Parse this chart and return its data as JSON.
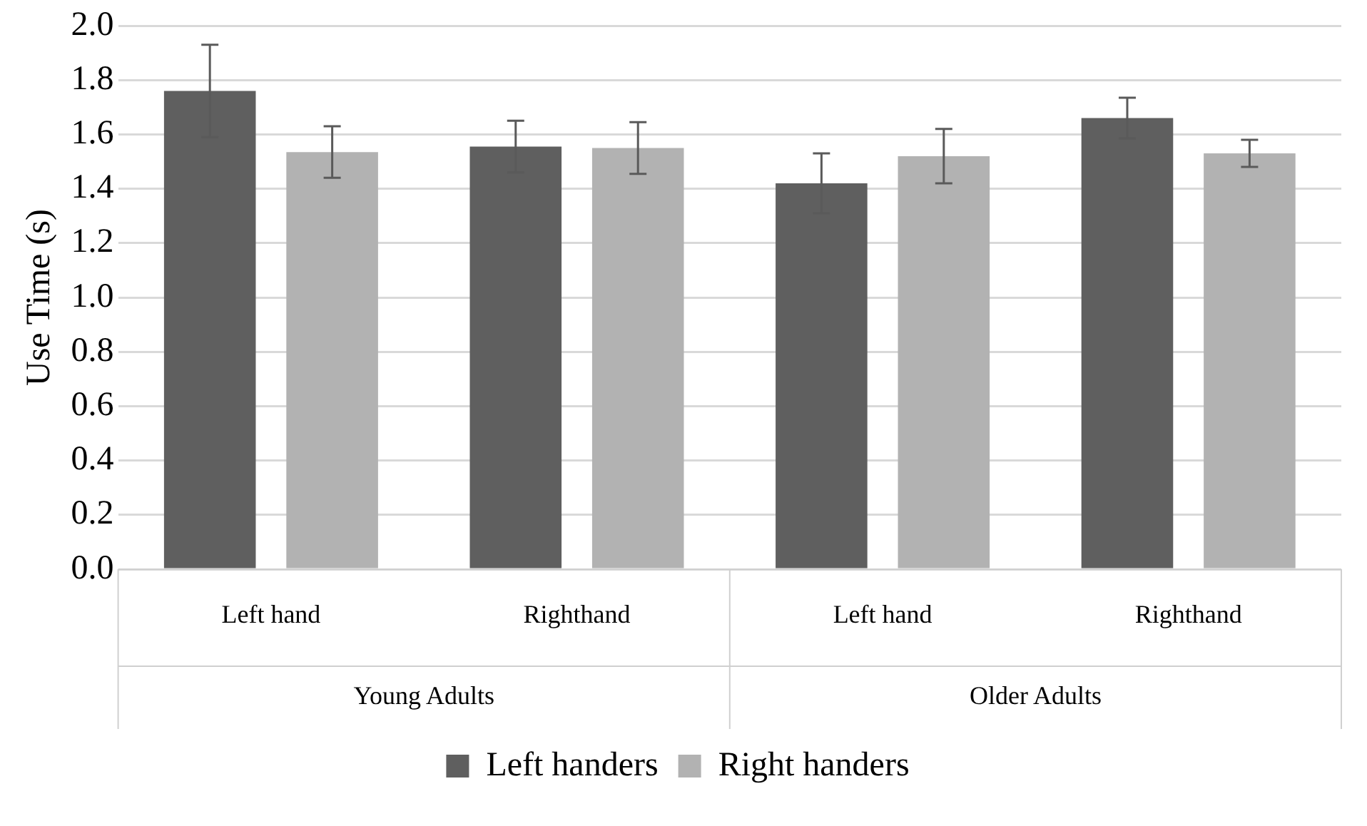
{
  "chart_data": {
    "type": "bar",
    "ylabel": "Use Time (s)",
    "categories": [
      "Left hand",
      "Righthand",
      "Left hand",
      "Righthand"
    ],
    "annotations": [
      "Young Adults",
      "Older Adults"
    ],
    "series": [
      {
        "name": "Left handers",
        "color": "#5f5f5f",
        "values": [
          1.76,
          1.555,
          1.42,
          1.66
        ],
        "errors": [
          0.17,
          0.095,
          0.11,
          0.075
        ]
      },
      {
        "name": "Right handers",
        "color": "#b2b2b2",
        "values": [
          1.535,
          1.55,
          1.52,
          1.53
        ],
        "errors": [
          0.095,
          0.095,
          0.1,
          0.05
        ]
      }
    ],
    "ylim": [
      0,
      2
    ],
    "yticks": [
      {
        "value": 0,
        "label": "0.0"
      },
      0.2,
      0.4,
      0.6,
      0.8,
      {
        "value": 1,
        "label": "1.0"
      },
      1.2,
      1.4,
      1.6,
      1.8,
      {
        "value": 2,
        "label": "2.0"
      }
    ],
    "grid": "y",
    "legend": "bottom"
  }
}
